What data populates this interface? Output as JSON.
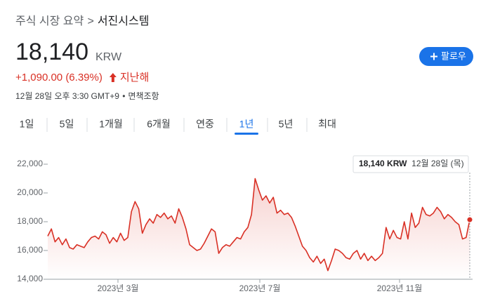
{
  "header": {
    "breadcrumb": "주식 시장 요약",
    "breadcrumb_sep": ">",
    "name": "서진시스템",
    "price": "18,140",
    "currency": "KRW",
    "follow": "팔로우",
    "change": "+1,090.00 (6.39%)",
    "period": "지난해",
    "timestamp": "12월 28일 오후 3:30 GMT+9",
    "separator": "•",
    "disclaimer": "면책조항"
  },
  "tabs": [
    "1일",
    "5일",
    "1개월",
    "6개월",
    "연중",
    "1년",
    "5년",
    "최대"
  ],
  "active_tab": "1년",
  "tooltip": {
    "price": "18,140 KRW",
    "date": "12월 28일 (목)"
  },
  "chart_data": {
    "type": "line",
    "x_labels": [
      "2023년 3월",
      "2023년 7월",
      "2023년 11월"
    ],
    "series": [
      {
        "name": "서진시스템",
        "color": "#d93025",
        "values": [
          17000,
          17500,
          16600,
          16900,
          16400,
          16800,
          16200,
          16100,
          16400,
          16300,
          16200,
          16600,
          16900,
          17000,
          16800,
          17300,
          17100,
          16500,
          16900,
          16600,
          17200,
          16700,
          16900,
          18700,
          19400,
          18900,
          17200,
          17800,
          18200,
          17900,
          18500,
          18300,
          18600,
          18200,
          18400,
          17900,
          18900,
          18300,
          17500,
          16400,
          16200,
          16000,
          16100,
          16500,
          17000,
          17500,
          17300,
          15800,
          16200,
          16400,
          16300,
          16600,
          16900,
          16800,
          17300,
          17600,
          18500,
          21000,
          20200,
          19500,
          19800,
          19300,
          19700,
          18600,
          18800,
          18500,
          18600,
          18300,
          17700,
          17000,
          16300,
          16000,
          15500,
          15200,
          15600,
          15100,
          15400,
          14600,
          15300,
          16100,
          16000,
          15800,
          15500,
          15400,
          15800,
          16000,
          15400,
          15800,
          15300,
          15600,
          15300,
          15500,
          15800,
          17600,
          16800,
          17400,
          16900,
          16800,
          18000,
          16800,
          18600,
          17600,
          17900,
          19000,
          18500,
          18400,
          18600,
          19000,
          18700,
          18200,
          18500,
          18300,
          18000,
          17800,
          16800,
          16900,
          18140
        ]
      }
    ],
    "ylim": [
      14000,
      22000
    ],
    "yticks": [
      {
        "value": 14000,
        "label": "14,000"
      },
      {
        "value": 16000,
        "label": "16,000"
      },
      {
        "value": 18000,
        "label": "18,000"
      },
      {
        "value": 20000,
        "label": "20,000"
      },
      {
        "value": 22000,
        "label": "22,000"
      }
    ],
    "grid": false
  }
}
